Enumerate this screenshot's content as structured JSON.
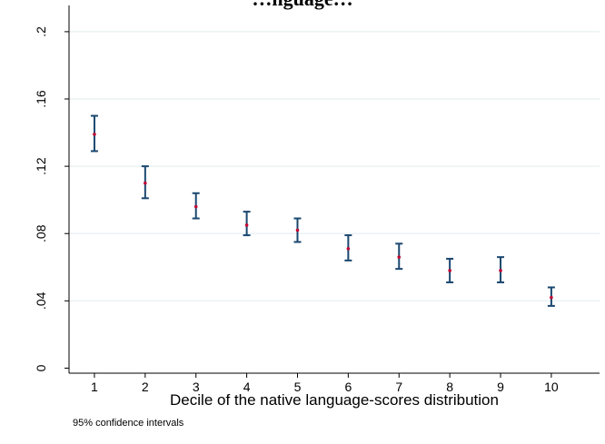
{
  "chart_data": {
    "type": "scatter",
    "title": "…nguage…",
    "xlabel": "Decile of the native language-scores distribution",
    "ylabel": "",
    "note": "95% confidence intervals",
    "x": [
      1,
      2,
      3,
      4,
      5,
      6,
      7,
      8,
      9,
      10
    ],
    "ylim": [
      0,
      0.2
    ],
    "yticks": [
      0,
      0.04,
      0.08,
      0.12,
      0.16,
      0.2
    ],
    "ytick_labels": [
      "0",
      ".04",
      ".08",
      ".12",
      ".16",
      ".2"
    ],
    "xticks": [
      1,
      2,
      3,
      4,
      5,
      6,
      7,
      8,
      9,
      10
    ],
    "xtick_labels": [
      "1",
      "2",
      "3",
      "4",
      "5",
      "6",
      "7",
      "8",
      "9",
      "10"
    ],
    "series": [
      {
        "estimate": [
          0.139,
          0.11,
          0.096,
          0.085,
          0.082,
          0.071,
          0.066,
          0.058,
          0.058,
          0.042
        ],
        "ci_low": [
          0.129,
          0.101,
          0.089,
          0.079,
          0.075,
          0.064,
          0.059,
          0.051,
          0.051,
          0.037
        ],
        "ci_high": [
          0.15,
          0.12,
          0.104,
          0.093,
          0.089,
          0.079,
          0.074,
          0.065,
          0.066,
          0.048
        ]
      }
    ],
    "grid": true,
    "colors": {
      "errorbar": "#1a476f",
      "point": "#c10534",
      "grid": "#eaf2f3",
      "axis": "#000000"
    }
  }
}
